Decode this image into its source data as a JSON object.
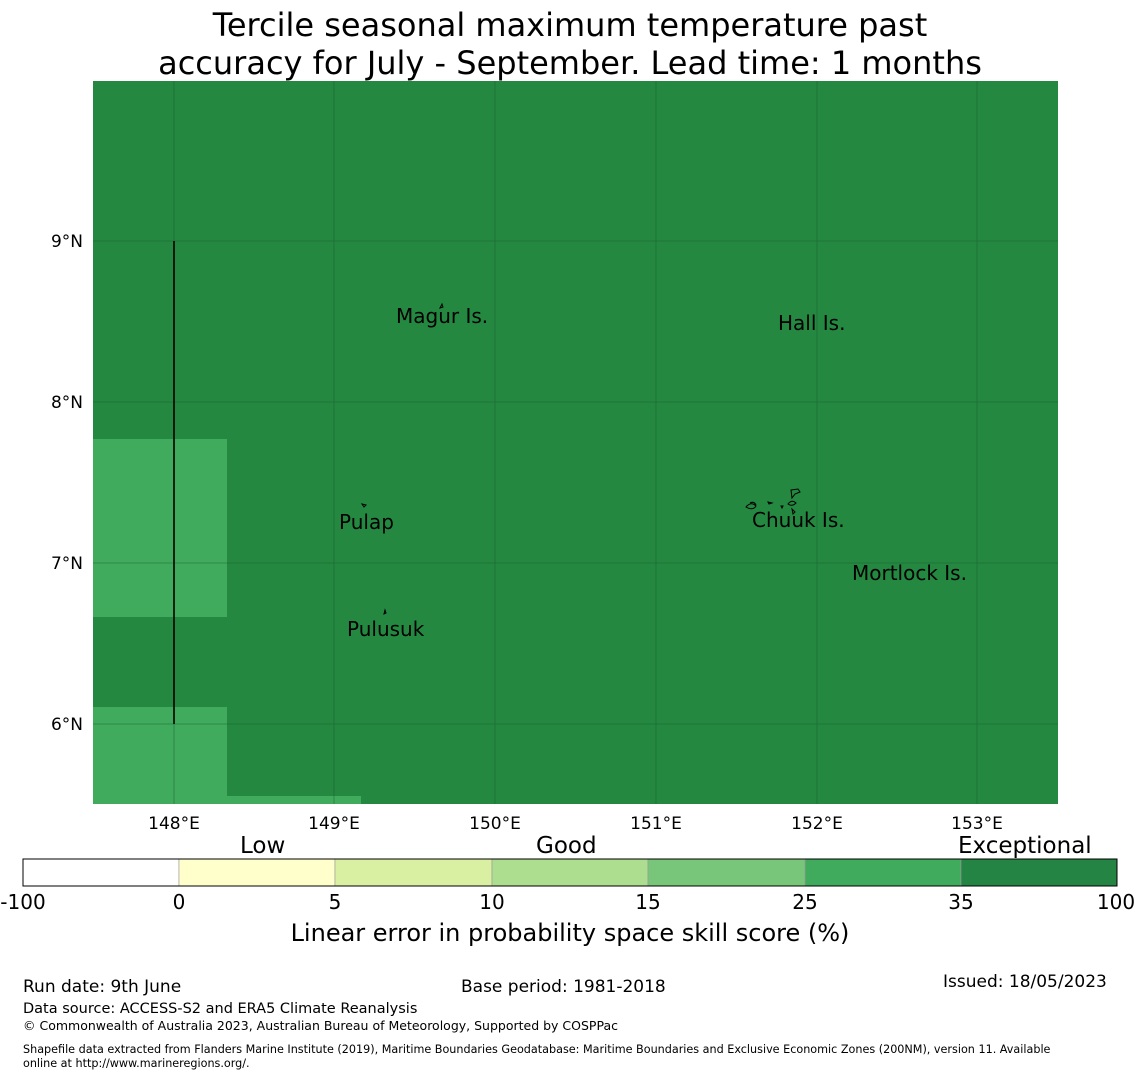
{
  "title_line1": "Tercile seasonal maximum temperature past",
  "title_line2": "accuracy for July - September. Lead time: 1 months",
  "map": {
    "background_color": "#248841",
    "cell_color": "#41ab5d",
    "lon_labels": [
      "148°E",
      "149°E",
      "150°E",
      "151°E",
      "152°E",
      "153°E"
    ],
    "lat_labels": [
      "9°N",
      "8°N",
      "7°N",
      "6°N"
    ],
    "places": [
      {
        "key": "magur",
        "label": "Magur Is."
      },
      {
        "key": "hall",
        "label": "Hall Is."
      },
      {
        "key": "pulap",
        "label": "Pulap"
      },
      {
        "key": "chuuk",
        "label": "Chuuk Is."
      },
      {
        "key": "mortlock",
        "label": "Mortlock Is."
      },
      {
        "key": "pulusuk",
        "label": "Pulusuk"
      }
    ]
  },
  "colorbar": {
    "categories": [
      "Low",
      "Good",
      "Exceptional"
    ],
    "ticks": [
      "-100",
      "0",
      "5",
      "10",
      "15",
      "25",
      "35",
      "100"
    ],
    "colors": [
      "#ffffff",
      "#ffffcc",
      "#d9f0a3",
      "#addd8e",
      "#78c679",
      "#41ab5d",
      "#238443"
    ],
    "title": "Linear error in probability space skill score (%)"
  },
  "footer": {
    "run_date": "Run date: 9th June",
    "base_period": "Base period: 1981-2018",
    "issued": "Issued: 18/05/2023",
    "data_source": "Data source: ACCESS-S2 and ERA5 Climate Reanalysis",
    "copyright": "© Commonwealth of Australia 2023, Australian Bureau of Meteorology, Supported by COSPPac",
    "shapefile_line1": "Shapefile data extracted from Flanders Marine Institute (2019), Maritime Boundaries Geodatabase: Maritime Boundaries and Exclusive Economic Zones (200NM), version 11. Available",
    "shapefile_line2": "online at http://www.marineregions.org/."
  }
}
